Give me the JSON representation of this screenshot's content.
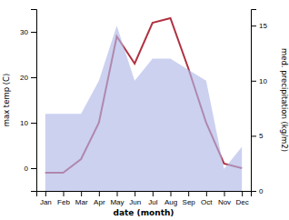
{
  "chart_data": {
    "type": "line",
    "xlabel": "date (month)",
    "ylabel": "max temp (C)",
    "y2label": "med. precipitation (kg/m2)",
    "categories": [
      "Jan",
      "Feb",
      "Mar",
      "Apr",
      "May",
      "Jun",
      "Jul",
      "Aug",
      "Sep",
      "Oct",
      "Nov",
      "Dec"
    ],
    "series": [
      {
        "type": "line",
        "axis": "y",
        "color": "#b03040",
        "values": [
          -1,
          -1,
          2,
          10,
          29,
          23,
          32,
          33,
          22,
          10,
          1,
          0
        ]
      },
      {
        "type": "area",
        "axis": "y2",
        "color": "#b0b8e8",
        "values": [
          7,
          7,
          7,
          10,
          15,
          10,
          12,
          12,
          11,
          10,
          2,
          4
        ]
      }
    ],
    "ylim": [
      -5,
      35
    ],
    "yticks": [
      0,
      10,
      20,
      30
    ],
    "y2lim": [
      0,
      16.5
    ],
    "y2ticks": [
      0,
      5,
      10,
      15
    ],
    "grid": false
  }
}
